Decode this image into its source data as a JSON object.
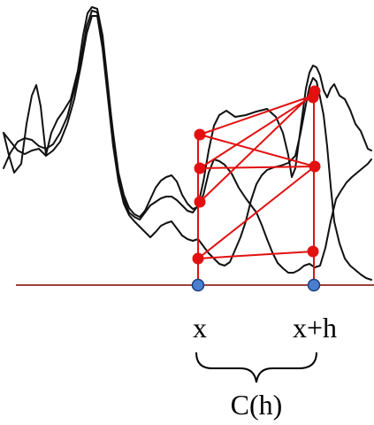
{
  "labels": {
    "x": "x",
    "x_plus_h": "x+h",
    "c_h": "C(h)"
  },
  "colors": {
    "axis": "#a0403a",
    "curve": "#111111",
    "pair_point": "#e31010",
    "pair_line": "#e31010",
    "base_point_fill": "#4a7fd0",
    "base_point_stroke": "#1f3f7a",
    "background": "#ffffff"
  }
}
